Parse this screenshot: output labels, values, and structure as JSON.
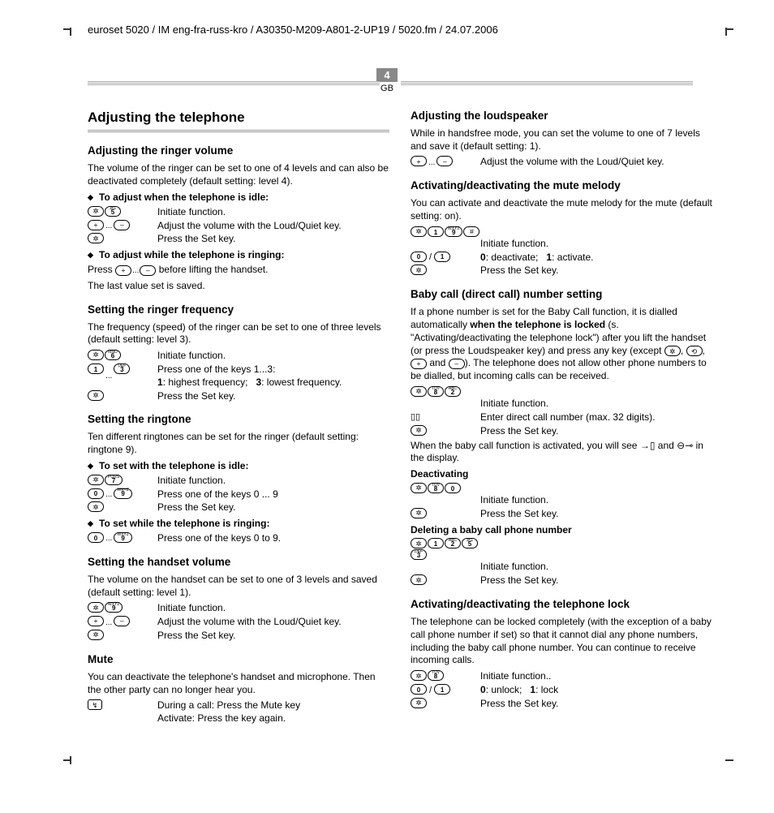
{
  "header": "euroset 5020 / IM eng-fra-russ-kro / A30350-M209-A801-2-UP19 / 5020.fm / 24.07.2006",
  "page_num": "4",
  "page_region": "GB",
  "title": "Adjusting the telephone",
  "left": {
    "s1_h": "Adjusting the ringer volume",
    "s1_p": "The volume of the ringer can be set to one of 4 levels and can also be deactivated completely (default setting: level 4).",
    "s1_sub1": "To adjust when the telephone is idle:",
    "s1_r1": "Initiate function.",
    "s1_r2": "Adjust the volume with the Loud/Quiet key.",
    "s1_r3": "Press the Set key.",
    "s1_sub2": "To adjust while the telephone is ringing:",
    "s1_p2a": "Press",
    "s1_p2b": "before lifting the handset.",
    "s1_p3": "The last value set is saved.",
    "s2_h": "Setting the ringer frequency",
    "s2_p": "The frequency (speed) of the ringer can be set to one of three levels (default setting: level 3).",
    "s2_r1": "Initiate function.",
    "s2_r2": "Press one of the keys 1...3:",
    "s2_r2b_1": "1",
    "s2_r2b_1t": ": highest frequency;",
    "s2_r2b_3": "3",
    "s2_r2b_3t": ": lowest frequency.",
    "s2_r3": "Press the Set key.",
    "s3_h": "Setting the ringtone",
    "s3_p": "Ten different ringtones can be set for the ringer (default setting: ringtone 9).",
    "s3_sub1": "To set with the telephone is idle:",
    "s3_r1": "Initiate function.",
    "s3_r2": "Press one of the keys 0 ... 9",
    "s3_r3": "Press the Set key.",
    "s3_sub2": "To set while the telephone is ringing:",
    "s3_r4": "Press one of the keys 0 to 9.",
    "s4_h": "Setting the handset volume",
    "s4_p": "The volume on the handset can be set to one of 3 levels and saved (default setting: level 1).",
    "s4_r1": "Initiate function.",
    "s4_r2": "Adjust the volume with the Loud/Quiet key.",
    "s4_r3": "Press the Set key.",
    "s5_h": "Mute",
    "s5_p": "You can deactivate the telephone's handset and microphone. Then the other party can no longer hear you.",
    "s5_r1": "During a call: Press the Mute key",
    "s5_r2": "Activate: Press the key again."
  },
  "right": {
    "s6_h": "Adjusting the loudspeaker",
    "s6_p": "While in handsfree mode, you can set the volume to one of 7 levels and save it (default setting: 1).",
    "s6_r1": "Adjust the volume with the Loud/Quiet key.",
    "s7_h": "Activating/deactivating the mute melody",
    "s7_p": "You can activate and deactivate the mute melody for the mute (default setting: on).",
    "s7_r1": "Initiate function.",
    "s7_r2_0": "0",
    "s7_r2_0t": ": deactivate;",
    "s7_r2_1": "1",
    "s7_r2_1t": ": activate.",
    "s7_r3": "Press the Set key.",
    "s8_h": "Baby call (direct call) number setting",
    "s8_p1": "If a phone number is set for the Baby Call function, it is dialled automatically ",
    "s8_p1b": "when the telephone is locked",
    "s8_p2a": "(s. \"Activating/deactivating the telephone lock\") after you lift the handset (or press the Loudspeaker key) and press any key (except ",
    "s8_p2b": " and ",
    "s8_p2c": "). The telephone does not allow other phone numbers to be dialled, but incoming calls can be received.",
    "s8_r1": "Initiate function.",
    "s8_r2": "Enter direct call number (max. 32 digits).",
    "s8_r3": "Press the Set key.",
    "s8_note1": "When the baby call function is activated, you will see ",
    "s8_note2": " and ",
    "s8_note3": " in the display.",
    "s8_sub1": "Deactivating",
    "s8_r4": "Initiate function.",
    "s8_r5": "Press the Set key.",
    "s8_sub2": "Deleting a baby call phone number",
    "s8_r6": "Initiate function.",
    "s8_r7": "Press the Set key.",
    "s9_h": "Activating/deactivating the telephone lock",
    "s9_p": "The telephone can be locked completely (with the exception of a baby call phone number if set) so that it cannot dial any phone numbers, including the baby call phone number. You can continue to receive incoming calls.",
    "s9_r1": "Initiate function..",
    "s9_r2_0": "0",
    "s9_r2_0t": ": unlock;",
    "s9_r2_1": "1",
    "s9_r2_1t": ": lock",
    "s9_r3": "Press the Set key."
  },
  "keys": {
    "set": "✲",
    "plus": "+",
    "minus": "–",
    "hash": "#",
    "mute": "↯",
    "redial": "⟲",
    "speaker": "📢",
    "0": "0",
    "1": "1",
    "2": "2",
    "3": "3",
    "5": "5",
    "6": "6",
    "7": "7",
    "8": "8",
    "9": "9"
  }
}
